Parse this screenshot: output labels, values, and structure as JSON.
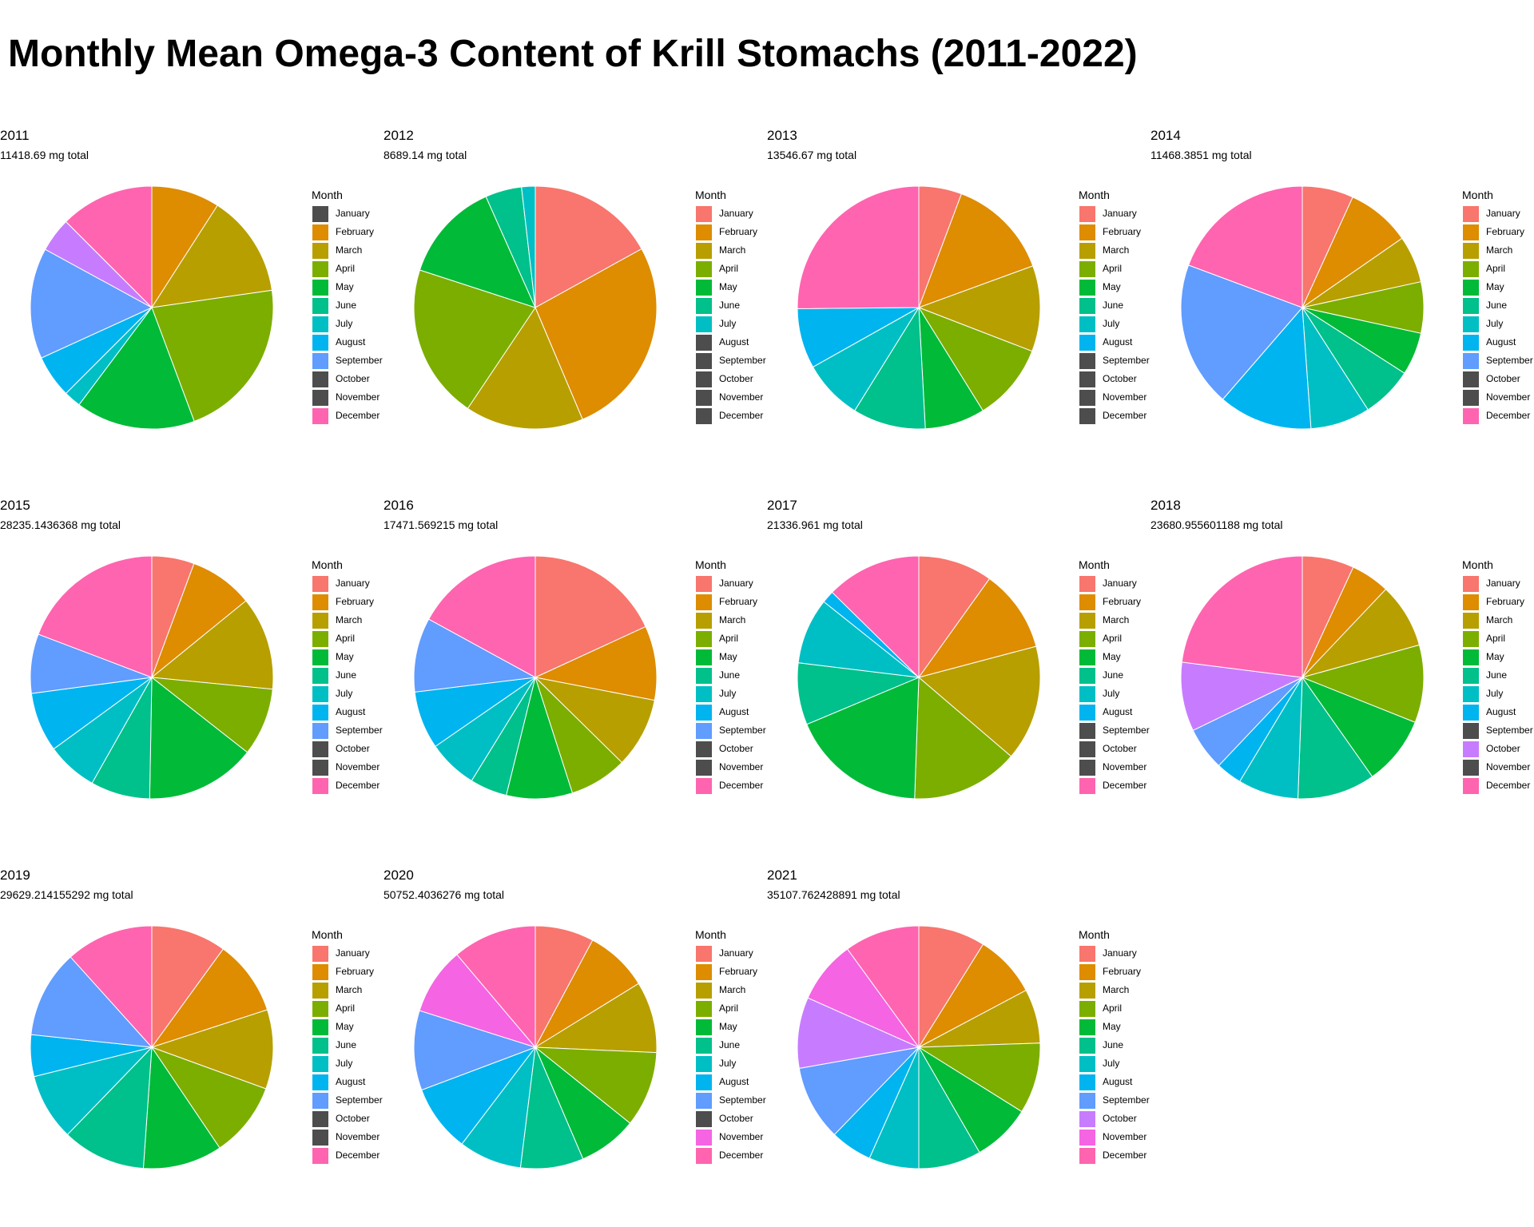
{
  "title": "Monthly Mean Omega-3 Content of Krill Stomachs (2011-2022)",
  "legend_title": "Month",
  "months": [
    "January",
    "February",
    "March",
    "April",
    "May",
    "June",
    "July",
    "August",
    "September",
    "October",
    "November",
    "December"
  ],
  "month_colors": [
    "#F8766D",
    "#DE8C00",
    "#B79F00",
    "#7CAE00",
    "#00BA38",
    "#00C08B",
    "#00BFC4",
    "#00B4F0",
    "#619CFF",
    "#C77CFF",
    "#F564E3",
    "#FF64B0"
  ],
  "missing_color": "#4D4D4D",
  "chart_data": [
    {
      "type": "pie",
      "title": "2011",
      "subtitle": "11418.69 mg total",
      "values": [
        0,
        8,
        12,
        19,
        14,
        0,
        2,
        5,
        13,
        4,
        0,
        11
      ],
      "legend_missing": [
        0,
        9,
        10
      ]
    },
    {
      "type": "pie",
      "title": "2012",
      "subtitle": "8689.14 mg total",
      "values": [
        14,
        22,
        13,
        17,
        11,
        4,
        1.5,
        0,
        0,
        0,
        0,
        0
      ],
      "legend_missing": [
        7,
        8,
        9,
        10,
        11
      ]
    },
    {
      "type": "pie",
      "title": "2013",
      "subtitle": "13546.67 mg total",
      "values": [
        5,
        12,
        10,
        9,
        7,
        8.5,
        7,
        7,
        0,
        0,
        0,
        22
      ],
      "legend_missing": [
        8,
        9,
        10,
        11
      ]
    },
    {
      "type": "pie",
      "title": "2014",
      "subtitle": "11468.3851 mg total",
      "values": [
        6,
        7.5,
        5.5,
        6,
        5,
        6,
        7,
        11,
        17,
        0,
        0,
        17
      ],
      "legend_missing": [
        9,
        10
      ]
    },
    {
      "type": "pie",
      "title": "2015",
      "subtitle": "28235.1436368 mg total",
      "values": [
        5,
        7.5,
        11,
        8,
        13,
        7,
        6,
        7,
        7,
        0,
        0,
        17
      ],
      "legend_missing": [
        9,
        10
      ]
    },
    {
      "type": "pie",
      "title": "2016",
      "subtitle": "17471.569215 mg total",
      "values": [
        16.5,
        9,
        8.5,
        7,
        8,
        4.5,
        6,
        7,
        9,
        0,
        0,
        15.5
      ],
      "legend_missing": [
        9,
        10
      ]
    },
    {
      "type": "pie",
      "title": "2017",
      "subtitle": "21336.961 mg total",
      "values": [
        9,
        10,
        14,
        13,
        16.5,
        7.5,
        8,
        1.5,
        0,
        0,
        0,
        11.5
      ],
      "legend_missing": [
        8,
        9,
        10
      ]
    },
    {
      "type": "pie",
      "title": "2018",
      "subtitle": "23680.955601188 mg total",
      "values": [
        6,
        4.5,
        7.5,
        9,
        8,
        9,
        7,
        3,
        5,
        8,
        0,
        20
      ],
      "legend_missing": [
        8,
        10
      ]
    },
    {
      "type": "pie",
      "title": "2019",
      "subtitle": "29629.214155292 mg total",
      "values": [
        9,
        9,
        9.5,
        9,
        9.5,
        10,
        8,
        5,
        10.5,
        0,
        0,
        10.5
      ],
      "legend_missing": [
        9,
        10
      ]
    },
    {
      "type": "pie",
      "title": "2020",
      "subtitle": "50752.4036276 mg total",
      "values": [
        7,
        7.5,
        8.5,
        9,
        7,
        7.5,
        7.5,
        8,
        9.5,
        0,
        8,
        10
      ],
      "legend_missing": [
        9
      ]
    },
    {
      "type": "pie",
      "title": "2021",
      "subtitle": "35107.762428891 mg total",
      "values": [
        8,
        7.5,
        6.5,
        8.5,
        7,
        7.5,
        6,
        5,
        9,
        8.5,
        7.5,
        9
      ],
      "legend_missing": []
    }
  ]
}
